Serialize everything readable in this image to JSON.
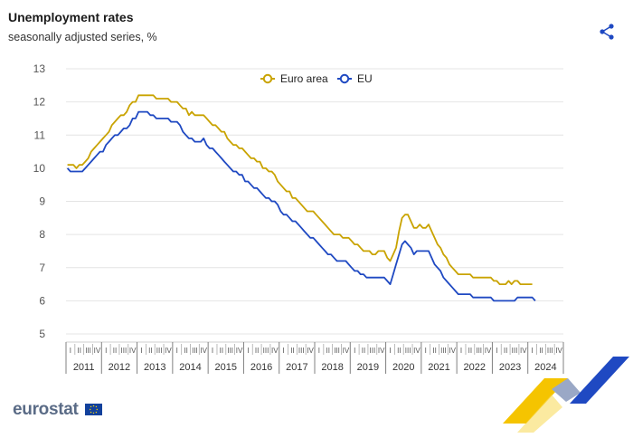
{
  "header": {
    "title": "Unemployment rates",
    "subtitle": "seasonally adjusted series, %"
  },
  "branding": {
    "logo_text": "eurostat"
  },
  "icons": {
    "share": "share-icon"
  },
  "colors": {
    "euro_area": "#c9a300",
    "eu": "#1f49c2",
    "grid": "#e4e4e4",
    "axis": "#808080"
  },
  "chart_data": {
    "type": "line",
    "ylim": [
      5,
      13
    ],
    "yticks": [
      5,
      6,
      7,
      8,
      9,
      10,
      11,
      12,
      13
    ],
    "years": [
      "2011",
      "2012",
      "2013",
      "2014",
      "2015",
      "2016",
      "2017",
      "2018",
      "2019",
      "2020",
      "2021",
      "2022",
      "2023",
      "2024"
    ],
    "quarter_labels": [
      "I",
      "II",
      "III",
      "IV"
    ],
    "grid": true,
    "legend_position": "top-center",
    "x_start": "2011-01",
    "series": [
      {
        "name": "Euro area",
        "color": "#c9a300",
        "values": [
          10.1,
          10.1,
          10.1,
          10.0,
          10.1,
          10.1,
          10.2,
          10.3,
          10.5,
          10.6,
          10.7,
          10.8,
          10.9,
          11.0,
          11.1,
          11.3,
          11.4,
          11.5,
          11.6,
          11.6,
          11.7,
          11.9,
          12.0,
          12.0,
          12.2,
          12.2,
          12.2,
          12.2,
          12.2,
          12.2,
          12.1,
          12.1,
          12.1,
          12.1,
          12.1,
          12.0,
          12.0,
          12.0,
          11.9,
          11.8,
          11.8,
          11.6,
          11.7,
          11.6,
          11.6,
          11.6,
          11.6,
          11.5,
          11.4,
          11.3,
          11.3,
          11.2,
          11.1,
          11.1,
          10.9,
          10.8,
          10.7,
          10.7,
          10.6,
          10.6,
          10.5,
          10.4,
          10.3,
          10.3,
          10.2,
          10.2,
          10.0,
          10.0,
          9.9,
          9.9,
          9.8,
          9.6,
          9.5,
          9.4,
          9.3,
          9.3,
          9.1,
          9.1,
          9.0,
          8.9,
          8.8,
          8.7,
          8.7,
          8.7,
          8.6,
          8.5,
          8.4,
          8.3,
          8.2,
          8.1,
          8.0,
          8.0,
          8.0,
          7.9,
          7.9,
          7.9,
          7.8,
          7.7,
          7.7,
          7.6,
          7.5,
          7.5,
          7.5,
          7.4,
          7.4,
          7.5,
          7.5,
          7.5,
          7.3,
          7.2,
          7.4,
          7.6,
          8.1,
          8.5,
          8.6,
          8.6,
          8.4,
          8.2,
          8.2,
          8.3,
          8.2,
          8.2,
          8.3,
          8.1,
          7.9,
          7.7,
          7.6,
          7.4,
          7.3,
          7.1,
          7.0,
          6.9,
          6.8,
          6.8,
          6.8,
          6.8,
          6.8,
          6.7,
          6.7,
          6.7,
          6.7,
          6.7,
          6.7,
          6.7,
          6.6,
          6.6,
          6.5,
          6.5,
          6.5,
          6.6,
          6.5,
          6.6,
          6.6,
          6.5,
          6.5,
          6.5,
          6.5,
          6.5
        ]
      },
      {
        "name": "EU",
        "color": "#1f49c2",
        "values": [
          10.0,
          9.9,
          9.9,
          9.9,
          9.9,
          9.9,
          10.0,
          10.1,
          10.2,
          10.3,
          10.4,
          10.5,
          10.5,
          10.7,
          10.8,
          10.9,
          11.0,
          11.0,
          11.1,
          11.2,
          11.2,
          11.3,
          11.5,
          11.5,
          11.7,
          11.7,
          11.7,
          11.7,
          11.6,
          11.6,
          11.5,
          11.5,
          11.5,
          11.5,
          11.5,
          11.4,
          11.4,
          11.4,
          11.3,
          11.1,
          11.0,
          10.9,
          10.9,
          10.8,
          10.8,
          10.8,
          10.9,
          10.7,
          10.6,
          10.6,
          10.5,
          10.4,
          10.3,
          10.2,
          10.1,
          10.0,
          9.9,
          9.9,
          9.8,
          9.8,
          9.6,
          9.6,
          9.5,
          9.4,
          9.4,
          9.3,
          9.2,
          9.1,
          9.1,
          9.0,
          9.0,
          8.9,
          8.7,
          8.6,
          8.6,
          8.5,
          8.4,
          8.4,
          8.3,
          8.2,
          8.1,
          8.0,
          7.9,
          7.9,
          7.8,
          7.7,
          7.6,
          7.5,
          7.4,
          7.4,
          7.3,
          7.2,
          7.2,
          7.2,
          7.2,
          7.1,
          7.0,
          6.9,
          6.9,
          6.8,
          6.8,
          6.7,
          6.7,
          6.7,
          6.7,
          6.7,
          6.7,
          6.7,
          6.6,
          6.5,
          6.8,
          7.1,
          7.4,
          7.7,
          7.8,
          7.7,
          7.6,
          7.4,
          7.5,
          7.5,
          7.5,
          7.5,
          7.5,
          7.3,
          7.1,
          7.0,
          6.9,
          6.7,
          6.6,
          6.5,
          6.4,
          6.3,
          6.2,
          6.2,
          6.2,
          6.2,
          6.2,
          6.1,
          6.1,
          6.1,
          6.1,
          6.1,
          6.1,
          6.1,
          6.0,
          6.0,
          6.0,
          6.0,
          6.0,
          6.0,
          6.0,
          6.0,
          6.1,
          6.1,
          6.1,
          6.1,
          6.1,
          6.1,
          6.0
        ]
      }
    ]
  }
}
